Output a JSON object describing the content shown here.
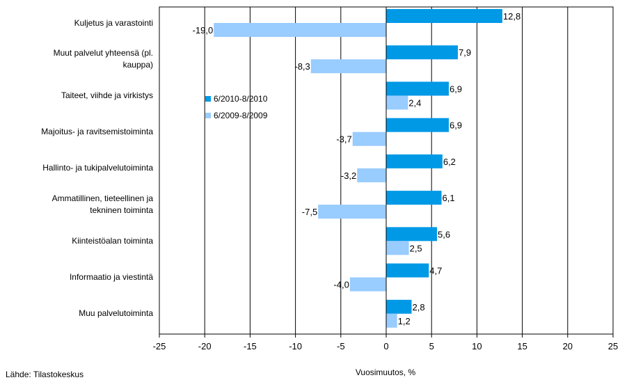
{
  "chart_data": {
    "type": "bar",
    "orientation": "horizontal",
    "categories": [
      "Kuljetus ja varastointi",
      "Muut palvelut yhteensä (pl. kauppa)",
      "Taiteet, viihde ja virkistys",
      "Majoitus- ja ravitsemistoiminta",
      "Hallinto- ja tukipalvelutoiminta",
      "Ammatillinen, tieteellinen ja tekninen toiminta",
      "Kiinteistöalan toiminta",
      "Informaatio ja viestintä",
      "Muu palvelutoiminta"
    ],
    "category_lines": [
      [
        "Kuljetus ja varastointi"
      ],
      [
        "Muut palvelut yhteensä (pl.",
        "kauppa)"
      ],
      [
        "Taiteet, viihde ja virkistys"
      ],
      [
        "Majoitus- ja ravitsemistoiminta"
      ],
      [
        "Hallinto- ja tukipalvelutoiminta"
      ],
      [
        "Ammatillinen, tieteellinen ja",
        "tekninen toiminta"
      ],
      [
        "Kiinteistöalan toiminta"
      ],
      [
        "Informaatio ja viestintä"
      ],
      [
        "Muu palvelutoiminta"
      ]
    ],
    "series": [
      {
        "name": "6/2010-8/2010",
        "color": "#0099E6",
        "values": [
          12.8,
          7.9,
          6.9,
          6.9,
          6.2,
          6.1,
          5.6,
          4.7,
          2.8
        ],
        "labels": [
          "12,8",
          "7,9",
          "6,9",
          "6,9",
          "6,2",
          "6,1",
          "5,6",
          "4,7",
          "2,8"
        ]
      },
      {
        "name": "6/2009-8/2009",
        "color": "#99CCFF",
        "values": [
          -19.0,
          -8.3,
          2.4,
          -3.7,
          -3.2,
          -7.5,
          2.5,
          -4.0,
          1.2
        ],
        "labels": [
          "-19,0",
          "-8,3",
          "2,4",
          "-3,7",
          "-3,2",
          "-7,5",
          "2,5",
          "-4,0",
          "1,2"
        ]
      }
    ],
    "xlim": [
      -25,
      25
    ],
    "xticks": [
      -25,
      -20,
      -15,
      -10,
      -5,
      0,
      5,
      10,
      15,
      20,
      25
    ],
    "xlabel": "Vuosimuutos, %",
    "grid": true,
    "legend_position": "inside-left"
  },
  "source": "Lähde: Tilastokeskus"
}
